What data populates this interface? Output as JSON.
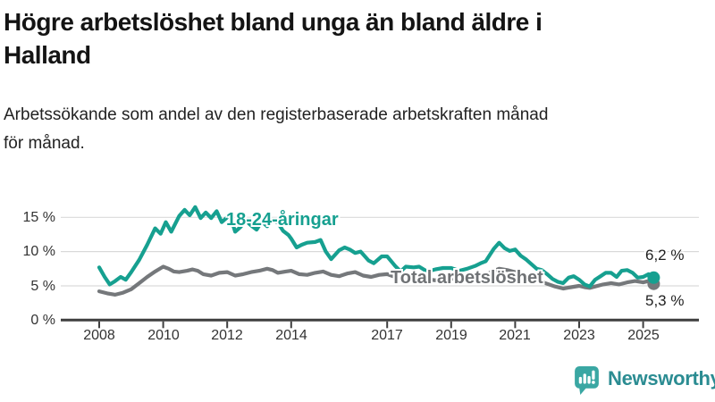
{
  "header": {
    "title": "Högre arbetslöshet bland unga än bland äldre i Halland",
    "title_lines": [
      "Högre arbetslöshet bland unga än bland äldre i",
      "Halland"
    ],
    "subtitle": "Arbetssökande som andel av den registerbaserade arbetskraften månad för månad.",
    "subtitle_lines": [
      "Arbetssökande som andel av den registerbaserade arbetskraften månad",
      "för månad."
    ]
  },
  "colors": {
    "accent_teal": "#16a090",
    "line_gray": "#75787b",
    "axis": "#3f3f3f",
    "grid": "#d9d9d9",
    "text_dark": "#141414",
    "brand_teal": "#3aa7a3",
    "brand_text": "#2b8c92"
  },
  "chart_data": {
    "type": "line",
    "title": "Högre arbetslöshet bland unga än bland äldre i Halland",
    "xlabel": "",
    "ylabel": "",
    "y_unit": "%",
    "ylim": [
      0,
      17.5
    ],
    "xlim": [
      2006.8,
      2026.7
    ],
    "grid": "horizontal",
    "legend_position": "inline-labels",
    "y_ticks": [
      {
        "value": 15,
        "label": "15 %"
      },
      {
        "value": 10,
        "label": "10 %"
      },
      {
        "value": 5,
        "label": "5 %"
      },
      {
        "value": 0,
        "label": "0 %"
      }
    ],
    "x_ticks": [
      {
        "year": 2008,
        "label": "2008"
      },
      {
        "year": 2010,
        "label": "2010"
      },
      {
        "year": 2012,
        "label": "2012"
      },
      {
        "year": 2014,
        "label": "2014"
      },
      {
        "year": 2017,
        "label": "2017"
      },
      {
        "year": 2019,
        "label": "2019"
      },
      {
        "year": 2021,
        "label": "2021"
      },
      {
        "year": 2023,
        "label": "2023"
      },
      {
        "year": 2025,
        "label": "2025"
      }
    ],
    "series": [
      {
        "id": "youth",
        "name": "18-24-åringar",
        "color": "#16a090",
        "end_label": "6,2 %",
        "end_value": 6.2,
        "points": [
          [
            2008.0,
            7.7
          ],
          [
            2008.17,
            6.3
          ],
          [
            2008.33,
            5.2
          ],
          [
            2008.5,
            5.7
          ],
          [
            2008.67,
            6.3
          ],
          [
            2008.83,
            5.9
          ],
          [
            2009.0,
            7.0
          ],
          [
            2009.25,
            8.8
          ],
          [
            2009.5,
            11.0
          ],
          [
            2009.75,
            13.4
          ],
          [
            2009.92,
            12.6
          ],
          [
            2010.08,
            14.3
          ],
          [
            2010.25,
            12.9
          ],
          [
            2010.5,
            15.2
          ],
          [
            2010.67,
            16.1
          ],
          [
            2010.83,
            15.3
          ],
          [
            2011.0,
            16.5
          ],
          [
            2011.17,
            14.9
          ],
          [
            2011.33,
            15.7
          ],
          [
            2011.5,
            14.9
          ],
          [
            2011.67,
            15.9
          ],
          [
            2011.83,
            14.3
          ],
          [
            2012.0,
            15.0
          ],
          [
            2012.08,
            15.4
          ],
          [
            2012.25,
            12.9
          ],
          [
            2012.42,
            13.6
          ],
          [
            2012.58,
            14.5
          ],
          [
            2012.75,
            13.8
          ],
          [
            2012.92,
            13.2
          ],
          [
            2013.08,
            14.4
          ],
          [
            2013.25,
            13.7
          ],
          [
            2013.42,
            14.7
          ],
          [
            2013.58,
            14.2
          ],
          [
            2013.75,
            13.0
          ],
          [
            2013.92,
            12.4
          ],
          [
            2014.0,
            11.9
          ],
          [
            2014.17,
            10.6
          ],
          [
            2014.33,
            11.0
          ],
          [
            2014.5,
            11.3
          ],
          [
            2014.75,
            11.4
          ],
          [
            2014.92,
            11.7
          ],
          [
            2015.08,
            10.0
          ],
          [
            2015.25,
            8.9
          ],
          [
            2015.5,
            10.2
          ],
          [
            2015.67,
            10.6
          ],
          [
            2015.83,
            10.3
          ],
          [
            2016.0,
            9.8
          ],
          [
            2016.17,
            10.0
          ],
          [
            2016.42,
            8.7
          ],
          [
            2016.58,
            8.3
          ],
          [
            2016.83,
            9.3
          ],
          [
            2017.0,
            9.3
          ],
          [
            2017.25,
            7.9
          ],
          [
            2017.42,
            7.1
          ],
          [
            2017.58,
            7.8
          ],
          [
            2017.83,
            7.7
          ],
          [
            2018.0,
            7.8
          ],
          [
            2018.25,
            7.1
          ],
          [
            2018.5,
            7.4
          ],
          [
            2018.75,
            7.6
          ],
          [
            2019.0,
            7.6
          ],
          [
            2019.25,
            7.2
          ],
          [
            2019.5,
            7.5
          ],
          [
            2019.75,
            7.9
          ],
          [
            2019.92,
            8.3
          ],
          [
            2020.08,
            8.6
          ],
          [
            2020.33,
            10.4
          ],
          [
            2020.5,
            11.3
          ],
          [
            2020.67,
            10.5
          ],
          [
            2020.83,
            10.1
          ],
          [
            2021.0,
            10.3
          ],
          [
            2021.17,
            9.4
          ],
          [
            2021.33,
            8.9
          ],
          [
            2021.5,
            8.2
          ],
          [
            2021.67,
            7.5
          ],
          [
            2021.83,
            7.3
          ],
          [
            2022.0,
            6.7
          ],
          [
            2022.17,
            6.0
          ],
          [
            2022.33,
            5.6
          ],
          [
            2022.5,
            5.4
          ],
          [
            2022.67,
            6.2
          ],
          [
            2022.83,
            6.4
          ],
          [
            2023.0,
            5.9
          ],
          [
            2023.17,
            5.2
          ],
          [
            2023.33,
            4.9
          ],
          [
            2023.5,
            5.9
          ],
          [
            2023.67,
            6.4
          ],
          [
            2023.83,
            6.9
          ],
          [
            2024.0,
            6.9
          ],
          [
            2024.17,
            6.3
          ],
          [
            2024.33,
            7.2
          ],
          [
            2024.5,
            7.3
          ],
          [
            2024.67,
            6.9
          ],
          [
            2024.83,
            6.2
          ],
          [
            2025.0,
            6.3
          ],
          [
            2025.17,
            6.7
          ],
          [
            2025.33,
            6.2
          ]
        ]
      },
      {
        "id": "total",
        "name": "Total arbetslöshet",
        "color": "#75787b",
        "end_label": "5,3 %",
        "end_value": 5.3,
        "points": [
          [
            2008.0,
            4.2
          ],
          [
            2008.25,
            3.9
          ],
          [
            2008.5,
            3.7
          ],
          [
            2008.75,
            4.0
          ],
          [
            2009.0,
            4.5
          ],
          [
            2009.25,
            5.4
          ],
          [
            2009.5,
            6.3
          ],
          [
            2009.75,
            7.1
          ],
          [
            2010.0,
            7.8
          ],
          [
            2010.17,
            7.5
          ],
          [
            2010.33,
            7.1
          ],
          [
            2010.5,
            7.0
          ],
          [
            2010.75,
            7.2
          ],
          [
            2010.92,
            7.4
          ],
          [
            2011.08,
            7.2
          ],
          [
            2011.25,
            6.7
          ],
          [
            2011.5,
            6.5
          ],
          [
            2011.75,
            6.9
          ],
          [
            2012.0,
            7.0
          ],
          [
            2012.25,
            6.5
          ],
          [
            2012.5,
            6.7
          ],
          [
            2012.75,
            7.0
          ],
          [
            2013.0,
            7.2
          ],
          [
            2013.25,
            7.5
          ],
          [
            2013.42,
            7.3
          ],
          [
            2013.58,
            6.9
          ],
          [
            2013.83,
            7.1
          ],
          [
            2014.0,
            7.2
          ],
          [
            2014.25,
            6.7
          ],
          [
            2014.5,
            6.6
          ],
          [
            2014.75,
            6.9
          ],
          [
            2015.0,
            7.1
          ],
          [
            2015.25,
            6.6
          ],
          [
            2015.5,
            6.4
          ],
          [
            2015.75,
            6.8
          ],
          [
            2016.0,
            7.0
          ],
          [
            2016.25,
            6.5
          ],
          [
            2016.5,
            6.3
          ],
          [
            2016.75,
            6.6
          ],
          [
            2017.0,
            6.7
          ],
          [
            2017.25,
            6.3
          ],
          [
            2017.5,
            6.1
          ],
          [
            2017.75,
            6.4
          ],
          [
            2018.0,
            6.4
          ],
          [
            2018.25,
            6.0
          ],
          [
            2018.5,
            5.8
          ],
          [
            2018.75,
            6.1
          ],
          [
            2019.0,
            6.1
          ],
          [
            2019.25,
            5.8
          ],
          [
            2019.5,
            5.9
          ],
          [
            2019.75,
            6.1
          ],
          [
            2020.0,
            6.3
          ],
          [
            2020.25,
            7.0
          ],
          [
            2020.5,
            7.5
          ],
          [
            2020.75,
            7.3
          ],
          [
            2021.0,
            7.0
          ],
          [
            2021.25,
            6.5
          ],
          [
            2021.5,
            6.1
          ],
          [
            2021.75,
            5.7
          ],
          [
            2022.0,
            5.3
          ],
          [
            2022.25,
            4.9
          ],
          [
            2022.5,
            4.6
          ],
          [
            2022.75,
            4.8
          ],
          [
            2023.0,
            5.0
          ],
          [
            2023.17,
            4.8
          ],
          [
            2023.33,
            4.7
          ],
          [
            2023.5,
            4.9
          ],
          [
            2023.75,
            5.2
          ],
          [
            2024.0,
            5.4
          ],
          [
            2024.25,
            5.2
          ],
          [
            2024.5,
            5.5
          ],
          [
            2024.75,
            5.7
          ],
          [
            2025.0,
            5.5
          ],
          [
            2025.17,
            5.7
          ],
          [
            2025.33,
            5.3
          ]
        ]
      }
    ]
  },
  "footer": {
    "brand": "Newsworthy"
  }
}
